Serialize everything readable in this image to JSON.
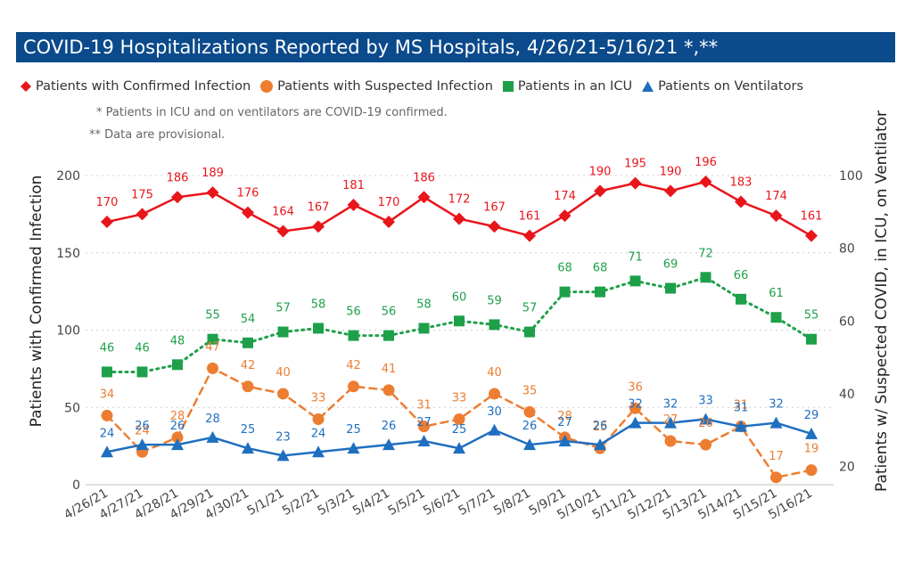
{
  "title": "COVID-19 Hospitalizations Reported by MS Hospitals, 4/26/21-5/16/21 *,**",
  "notes": [
    "* Patients in ICU and on ventilators are COVID-19 confirmed.",
    "** Data are provisional."
  ],
  "chart_data": {
    "type": "line",
    "x": [
      "4/26/21",
      "4/27/21",
      "4/28/21",
      "4/29/21",
      "4/30/21",
      "5/1/21",
      "5/2/21",
      "5/3/21",
      "5/4/21",
      "5/5/21",
      "5/6/21",
      "5/7/21",
      "5/8/21",
      "5/9/21",
      "5/10/21",
      "5/11/21",
      "5/12/21",
      "5/13/21",
      "5/14/21",
      "5/15/21",
      "5/16/21"
    ],
    "ylabel": "Patients with Confirmed Infection",
    "ylabel_right": "Patients w/ Suspected COVID, in ICU, on Ventilator",
    "ylim": [
      0,
      200
    ],
    "ylim_right": [
      15,
      100
    ],
    "yticks": [
      0,
      50,
      100,
      150,
      200
    ],
    "yticks_right": [
      20,
      40,
      60,
      80,
      100
    ],
    "grid": true,
    "legend": "top",
    "series": [
      {
        "name": "Patients with Confirmed Infection",
        "axis": "left",
        "color": "#e8151b",
        "marker": "diamond",
        "dash": "solid",
        "values": [
          170,
          175,
          186,
          189,
          176,
          164,
          167,
          181,
          170,
          186,
          172,
          167,
          161,
          174,
          190,
          195,
          190,
          196,
          183,
          174,
          161
        ]
      },
      {
        "name": "Patients with Suspected Infection",
        "axis": "right",
        "color": "#ed7d31",
        "marker": "circle",
        "dash": "dashed",
        "values": [
          34,
          24,
          28,
          47,
          42,
          40,
          33,
          42,
          41,
          31,
          33,
          40,
          35,
          28,
          25,
          36,
          27,
          26,
          31,
          17,
          19
        ]
      },
      {
        "name": "Patients in an ICU",
        "axis": "right",
        "color": "#1ea04a",
        "marker": "square",
        "dash": "dotted",
        "values": [
          46,
          46,
          48,
          55,
          54,
          57,
          58,
          56,
          56,
          58,
          60,
          59,
          57,
          68,
          68,
          71,
          69,
          72,
          66,
          61,
          55
        ]
      },
      {
        "name": "Patients on Ventilators",
        "axis": "right",
        "color": "#1f6fc0",
        "marker": "triangle",
        "dash": "solid",
        "values": [
          24,
          26,
          26,
          28,
          25,
          23,
          24,
          25,
          26,
          27,
          25,
          30,
          26,
          27,
          26,
          32,
          32,
          33,
          31,
          32,
          29
        ]
      }
    ]
  }
}
